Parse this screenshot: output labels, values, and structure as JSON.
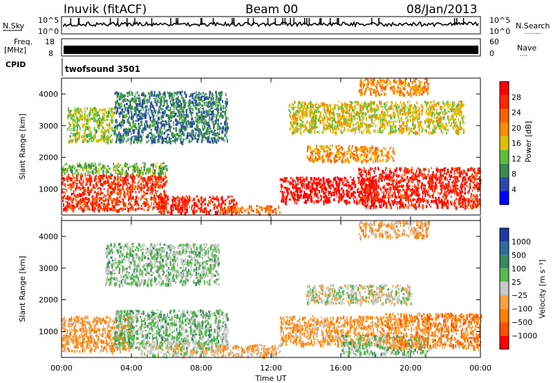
{
  "header": {
    "station": "Inuvik (fitACF)",
    "beam": "Beam 00",
    "date": "08/Jan/2013"
  },
  "noise_panel": {
    "left_label": "N.Sky",
    "right_label": "N.Search",
    "right_label_dots": ".........",
    "left_ticks": [
      "10^5",
      "10^0"
    ],
    "right_ticks": [
      "10^5",
      "10^0"
    ]
  },
  "freq_panel": {
    "left_label_line1": "Freq.",
    "left_label_line2": "[MHz]",
    "right_label": "Nave",
    "right_label_dots": "....",
    "left_ticks": [
      "18",
      "8"
    ],
    "right_ticks": [
      "60",
      "0"
    ]
  },
  "cpid_panel": {
    "label": "CPID",
    "value": "twofsound 3501"
  },
  "colors": {
    "power_scale": [
      "#0000ff",
      "#2a4aa8",
      "#3a8a50",
      "#5fc040",
      "#e0c000",
      "#ff8c00",
      "#ff6000",
      "#ff2800",
      "#ff0000"
    ],
    "velocity_scale": [
      "#1e3aa0",
      "#2e6aa0",
      "#3a8a60",
      "#5ab850",
      "#c8c8c8",
      "#ffa040",
      "#ff8000",
      "#ff5000",
      "#ff0000"
    ]
  },
  "chart_data": [
    {
      "type": "heatmap",
      "name": "power",
      "ylabel": "Slant Range [km]",
      "ylim": [
        180,
        4500
      ],
      "yticks": [
        "1000",
        "2000",
        "3000",
        "4000"
      ],
      "xlim": [
        0,
        24
      ],
      "colorbar": {
        "label": "Power [dB]",
        "ticks": [
          "4",
          "8",
          "12",
          "16",
          "20",
          "24",
          "28"
        ],
        "range": [
          0,
          32
        ]
      },
      "bands": [
        {
          "t0": 0.0,
          "t1": 6.0,
          "r0": 350,
          "r1": 1500,
          "value": 26
        },
        {
          "t0": 0.0,
          "t1": 6.0,
          "r0": 1500,
          "r1": 1850,
          "value": 12
        },
        {
          "t0": 5.5,
          "t1": 10.0,
          "r0": 280,
          "r1": 800,
          "value": 28
        },
        {
          "t0": 9.0,
          "t1": 12.5,
          "r0": 250,
          "r1": 500,
          "value": 22
        },
        {
          "t0": 12.5,
          "t1": 18.0,
          "r0": 600,
          "r1": 1400,
          "value": 30
        },
        {
          "t0": 17.0,
          "t1": 24.0,
          "r0": 450,
          "r1": 1700,
          "value": 28
        },
        {
          "t0": 14.0,
          "t1": 19.0,
          "r0": 1900,
          "r1": 2400,
          "value": 20
        },
        {
          "t0": 0.3,
          "t1": 3.0,
          "r0": 2500,
          "r1": 3600,
          "value": 14
        },
        {
          "t0": 3.0,
          "t1": 9.5,
          "r0": 2500,
          "r1": 4100,
          "value": 8
        },
        {
          "t0": 13.0,
          "t1": 23.0,
          "r0": 2800,
          "r1": 3800,
          "value": 16
        },
        {
          "t0": 17.0,
          "t1": 21.0,
          "r0": 4000,
          "r1": 4500,
          "value": 20
        }
      ]
    },
    {
      "type": "heatmap",
      "name": "velocity",
      "ylabel": "Slant Range [km]",
      "ylim": [
        180,
        4500
      ],
      "yticks": [
        "1000",
        "2000",
        "3000",
        "4000"
      ],
      "xlim": [
        0,
        24
      ],
      "xticks": [
        "00:00",
        "04:00",
        "08:00",
        "12:00",
        "16:00",
        "20:00",
        "00:00"
      ],
      "xlabel": "Time UT",
      "colorbar": {
        "label": "Velocity [m s⁻¹]",
        "ticks": [
          "1000",
          "500",
          "100",
          "25",
          "−25",
          "−100",
          "−500",
          "−1000"
        ],
        "range": [
          -1000,
          1000
        ]
      },
      "bands": [
        {
          "t0": 0.0,
          "t1": 4.0,
          "r0": 400,
          "r1": 1500,
          "value": -300
        },
        {
          "t0": 3.0,
          "t1": 9.5,
          "r0": 500,
          "r1": 1700,
          "value": 200
        },
        {
          "t0": 4.5,
          "t1": 9.0,
          "r0": 250,
          "r1": 700,
          "value": 0
        },
        {
          "t0": 9.0,
          "t1": 12.5,
          "r0": 250,
          "r1": 600,
          "value": -200
        },
        {
          "t0": 12.5,
          "t1": 18.5,
          "r0": 600,
          "r1": 1500,
          "value": -300
        },
        {
          "t0": 16.0,
          "t1": 21.0,
          "r0": 300,
          "r1": 900,
          "value": 150
        },
        {
          "t0": 18.5,
          "t1": 24.0,
          "r0": 500,
          "r1": 1600,
          "value": -400
        },
        {
          "t0": 14.0,
          "t1": 20.0,
          "r0": 1900,
          "r1": 2500,
          "value": 0
        },
        {
          "t0": 2.5,
          "t1": 9.0,
          "r0": 2500,
          "r1": 3800,
          "value": 150
        },
        {
          "t0": 17.0,
          "t1": 21.0,
          "r0": 4000,
          "r1": 4500,
          "value": -200
        }
      ]
    }
  ]
}
